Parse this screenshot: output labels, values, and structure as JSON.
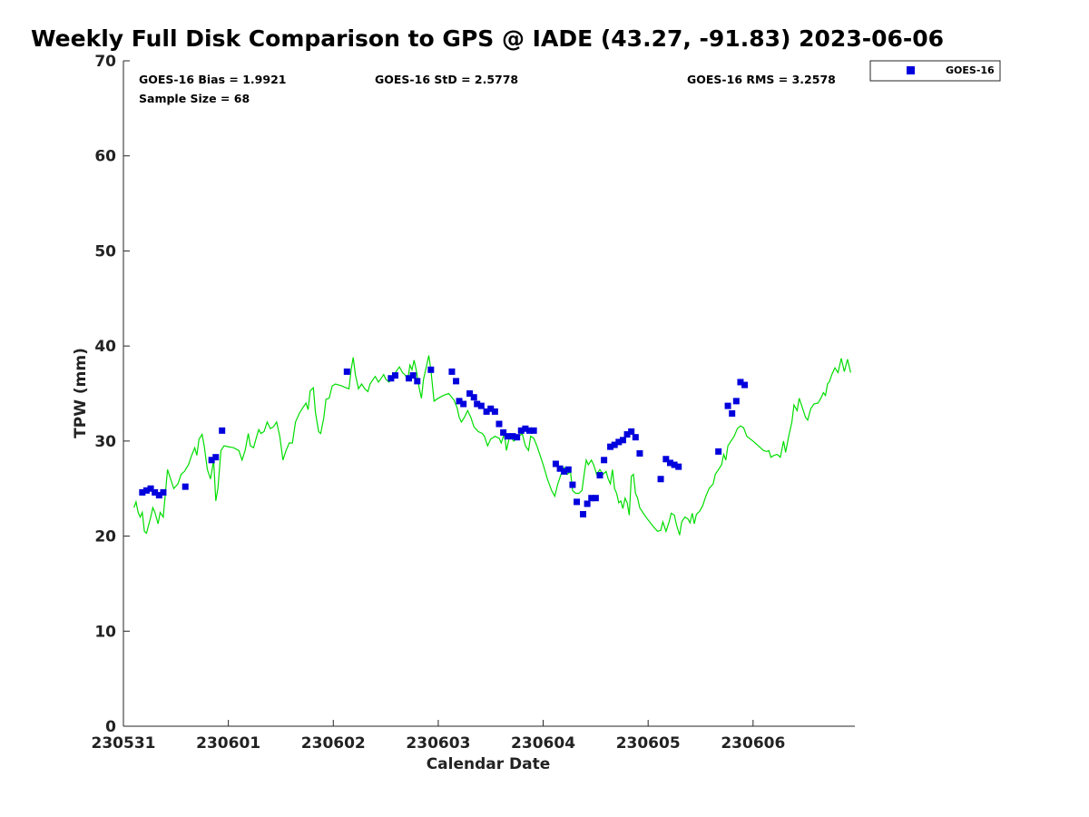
{
  "title": "Weekly Full Disk Comparison to GPS @ IADE (43.27, -91.83) 2023-06-06",
  "stats": {
    "bias": "GOES-16 Bias = 1.9921",
    "std": "GOES-16 StD = 2.5778",
    "rms": "GOES-16 RMS = 3.2578",
    "sample": "Sample Size = 68"
  },
  "legend": {
    "label": "GOES-16"
  },
  "colors": {
    "goes": "#0000dd",
    "gps": "#00dd00"
  },
  "chart_data": {
    "type": "scatter",
    "title": "Weekly Full Disk Comparison to GPS @ IADE (43.27, -91.83) 2023-06-06",
    "xlabel": "Calendar Date",
    "ylabel": "TPW (mm)",
    "xlim": [
      0,
      6.97
    ],
    "ylim": [
      0,
      70
    ],
    "xticks": [
      0,
      1,
      2,
      3,
      4,
      5,
      6
    ],
    "xtick_labels": [
      "230531",
      "230601",
      "230602",
      "230603",
      "230604",
      "230605",
      "230606"
    ],
    "yticks": [
      0,
      10,
      20,
      30,
      40,
      50,
      60,
      70
    ],
    "ytick_labels": [
      "0",
      "10",
      "20",
      "30",
      "40",
      "50",
      "60",
      "70"
    ],
    "series": [
      {
        "name": "GOES-16",
        "kind": "scatter",
        "points": [
          [
            0.18,
            24.6
          ],
          [
            0.22,
            24.8
          ],
          [
            0.26,
            25.0
          ],
          [
            0.3,
            24.6
          ],
          [
            0.34,
            24.3
          ],
          [
            0.38,
            24.6
          ],
          [
            0.59,
            25.2
          ],
          [
            0.84,
            28.0
          ],
          [
            0.88,
            28.3
          ],
          [
            0.94,
            31.1
          ],
          [
            2.13,
            37.3
          ],
          [
            2.55,
            36.6
          ],
          [
            2.59,
            36.9
          ],
          [
            2.72,
            36.6
          ],
          [
            2.76,
            36.9
          ],
          [
            2.8,
            36.3
          ],
          [
            2.93,
            37.5
          ],
          [
            3.13,
            37.3
          ],
          [
            3.17,
            36.3
          ],
          [
            3.2,
            34.2
          ],
          [
            3.24,
            33.9
          ],
          [
            3.3,
            35.0
          ],
          [
            3.34,
            34.6
          ],
          [
            3.37,
            33.9
          ],
          [
            3.41,
            33.7
          ],
          [
            3.46,
            33.1
          ],
          [
            3.5,
            33.4
          ],
          [
            3.54,
            33.1
          ],
          [
            3.58,
            31.8
          ],
          [
            3.62,
            30.9
          ],
          [
            3.66,
            30.5
          ],
          [
            3.71,
            30.5
          ],
          [
            3.75,
            30.4
          ],
          [
            3.79,
            31.1
          ],
          [
            3.83,
            31.3
          ],
          [
            3.87,
            31.1
          ],
          [
            3.91,
            31.1
          ],
          [
            4.12,
            27.6
          ],
          [
            4.16,
            27.1
          ],
          [
            4.2,
            26.8
          ],
          [
            4.24,
            27.0
          ],
          [
            4.28,
            25.4
          ],
          [
            4.32,
            23.6
          ],
          [
            4.38,
            22.3
          ],
          [
            4.42,
            23.4
          ],
          [
            4.46,
            24.0
          ],
          [
            4.5,
            24.0
          ],
          [
            4.54,
            26.4
          ],
          [
            4.58,
            28.0
          ],
          [
            4.64,
            29.4
          ],
          [
            4.68,
            29.6
          ],
          [
            4.72,
            29.9
          ],
          [
            4.76,
            30.1
          ],
          [
            4.8,
            30.7
          ],
          [
            4.84,
            31.0
          ],
          [
            4.88,
            30.4
          ],
          [
            4.92,
            28.7
          ],
          [
            5.12,
            26.0
          ],
          [
            5.17,
            28.1
          ],
          [
            5.21,
            27.7
          ],
          [
            5.25,
            27.5
          ],
          [
            5.29,
            27.3
          ],
          [
            5.67,
            28.9
          ],
          [
            5.76,
            33.7
          ],
          [
            5.8,
            32.9
          ],
          [
            5.84,
            34.2
          ],
          [
            5.88,
            36.2
          ],
          [
            5.92,
            35.9
          ]
        ]
      },
      {
        "name": "GPS",
        "kind": "line",
        "points": [
          [
            0.1,
            23.0
          ],
          [
            0.12,
            23.6
          ],
          [
            0.14,
            22.5
          ],
          [
            0.16,
            22.0
          ],
          [
            0.18,
            22.5
          ],
          [
            0.2,
            20.5
          ],
          [
            0.22,
            20.3
          ],
          [
            0.26,
            22.0
          ],
          [
            0.28,
            23.0
          ],
          [
            0.3,
            22.5
          ],
          [
            0.33,
            21.3
          ],
          [
            0.35,
            22.5
          ],
          [
            0.38,
            22.0
          ],
          [
            0.42,
            27.0
          ],
          [
            0.45,
            26.0
          ],
          [
            0.48,
            25.0
          ],
          [
            0.52,
            25.5
          ],
          [
            0.55,
            26.5
          ],
          [
            0.58,
            26.8
          ],
          [
            0.62,
            27.5
          ],
          [
            0.65,
            28.5
          ],
          [
            0.68,
            29.3
          ],
          [
            0.7,
            28.5
          ],
          [
            0.72,
            30.2
          ],
          [
            0.75,
            30.7
          ],
          [
            0.77,
            29.5
          ],
          [
            0.8,
            27.0
          ],
          [
            0.83,
            26.0
          ],
          [
            0.86,
            28.0
          ],
          [
            0.88,
            23.7
          ],
          [
            0.9,
            25.0
          ],
          [
            0.93,
            29.0
          ],
          [
            0.96,
            29.5
          ],
          [
            1.0,
            29.4
          ],
          [
            1.05,
            29.3
          ],
          [
            1.1,
            29.0
          ],
          [
            1.13,
            28.0
          ],
          [
            1.16,
            29.0
          ],
          [
            1.19,
            30.8
          ],
          [
            1.21,
            29.5
          ],
          [
            1.24,
            29.3
          ],
          [
            1.27,
            30.5
          ],
          [
            1.29,
            31.2
          ],
          [
            1.31,
            30.8
          ],
          [
            1.34,
            31.0
          ],
          [
            1.37,
            32.0
          ],
          [
            1.4,
            31.3
          ],
          [
            1.43,
            31.5
          ],
          [
            1.46,
            32.0
          ],
          [
            1.49,
            30.5
          ],
          [
            1.52,
            28.0
          ],
          [
            1.55,
            29.0
          ],
          [
            1.58,
            29.8
          ],
          [
            1.61,
            29.8
          ],
          [
            1.64,
            32.0
          ],
          [
            1.68,
            33.0
          ],
          [
            1.71,
            33.5
          ],
          [
            1.74,
            34.0
          ],
          [
            1.76,
            33.3
          ],
          [
            1.78,
            35.3
          ],
          [
            1.81,
            35.6
          ],
          [
            1.83,
            33.0
          ],
          [
            1.86,
            31.0
          ],
          [
            1.88,
            30.8
          ],
          [
            1.91,
            32.5
          ],
          [
            1.93,
            34.4
          ],
          [
            1.96,
            34.5
          ],
          [
            1.99,
            35.8
          ],
          [
            2.02,
            36.0
          ],
          [
            2.08,
            35.8
          ],
          [
            2.12,
            35.6
          ],
          [
            2.15,
            35.5
          ],
          [
            2.17,
            37.5
          ],
          [
            2.19,
            38.8
          ],
          [
            2.21,
            37.0
          ],
          [
            2.24,
            35.5
          ],
          [
            2.27,
            36.0
          ],
          [
            2.3,
            35.5
          ],
          [
            2.33,
            35.2
          ],
          [
            2.35,
            36.0
          ],
          [
            2.38,
            36.5
          ],
          [
            2.4,
            36.8
          ],
          [
            2.43,
            36.2
          ],
          [
            2.45,
            36.5
          ],
          [
            2.48,
            37.0
          ],
          [
            2.5,
            36.5
          ],
          [
            2.53,
            36.2
          ],
          [
            2.56,
            36.5
          ],
          [
            2.58,
            37.0
          ],
          [
            2.61,
            37.5
          ],
          [
            2.63,
            37.8
          ],
          [
            2.66,
            37.2
          ],
          [
            2.68,
            37.0
          ],
          [
            2.71,
            36.5
          ],
          [
            2.73,
            38.0
          ],
          [
            2.75,
            37.5
          ],
          [
            2.77,
            38.5
          ],
          [
            2.79,
            37.5
          ],
          [
            2.82,
            35.5
          ],
          [
            2.84,
            34.5
          ],
          [
            2.86,
            36.5
          ],
          [
            2.89,
            38.0
          ],
          [
            2.91,
            39.0
          ],
          [
            2.93,
            37.5
          ],
          [
            2.96,
            34.2
          ],
          [
            3.0,
            34.5
          ],
          [
            3.05,
            34.8
          ],
          [
            3.1,
            35.0
          ],
          [
            3.15,
            34.3
          ],
          [
            3.18,
            33.5
          ],
          [
            3.2,
            32.5
          ],
          [
            3.22,
            32.0
          ],
          [
            3.25,
            32.5
          ],
          [
            3.28,
            33.2
          ],
          [
            3.31,
            32.5
          ],
          [
            3.34,
            31.5
          ],
          [
            3.38,
            31.0
          ],
          [
            3.42,
            30.8
          ],
          [
            3.44,
            30.5
          ],
          [
            3.47,
            29.5
          ],
          [
            3.5,
            30.2
          ],
          [
            3.54,
            30.5
          ],
          [
            3.58,
            30.3
          ],
          [
            3.6,
            29.8
          ],
          [
            3.63,
            30.8
          ],
          [
            3.65,
            29.0
          ],
          [
            3.68,
            30.5
          ],
          [
            3.72,
            30.0
          ],
          [
            3.76,
            30.4
          ],
          [
            3.8,
            30.8
          ],
          [
            3.83,
            29.5
          ],
          [
            3.86,
            29.0
          ],
          [
            3.88,
            30.5
          ],
          [
            3.91,
            30.3
          ],
          [
            3.94,
            29.5
          ],
          [
            3.97,
            28.5
          ],
          [
            4.0,
            27.5
          ],
          [
            4.04,
            26.0
          ],
          [
            4.08,
            24.8
          ],
          [
            4.11,
            24.2
          ],
          [
            4.14,
            25.5
          ],
          [
            4.17,
            26.5
          ],
          [
            4.2,
            27.2
          ],
          [
            4.23,
            26.5
          ],
          [
            4.26,
            26.8
          ],
          [
            4.28,
            24.8
          ],
          [
            4.31,
            24.5
          ],
          [
            4.34,
            24.5
          ],
          [
            4.37,
            24.8
          ],
          [
            4.39,
            26.5
          ],
          [
            4.41,
            28.0
          ],
          [
            4.43,
            27.5
          ],
          [
            4.46,
            28.0
          ],
          [
            4.48,
            27.5
          ],
          [
            4.51,
            26.5
          ],
          [
            4.54,
            27.0
          ],
          [
            4.57,
            26.5
          ],
          [
            4.6,
            26.8
          ],
          [
            4.62,
            26.0
          ],
          [
            4.64,
            25.5
          ],
          [
            4.66,
            27.0
          ],
          [
            4.68,
            25.0
          ],
          [
            4.7,
            24.5
          ],
          [
            4.72,
            23.5
          ],
          [
            4.74,
            23.7
          ],
          [
            4.76,
            22.9
          ],
          [
            4.78,
            24.0
          ],
          [
            4.8,
            23.5
          ],
          [
            4.82,
            22.2
          ],
          [
            4.84,
            26.3
          ],
          [
            4.86,
            26.5
          ],
          [
            4.88,
            24.5
          ],
          [
            4.9,
            24.0
          ],
          [
            4.92,
            23.0
          ],
          [
            4.96,
            22.3
          ],
          [
            5.0,
            21.7
          ],
          [
            5.05,
            21.0
          ],
          [
            5.09,
            20.5
          ],
          [
            5.12,
            20.6
          ],
          [
            5.14,
            21.5
          ],
          [
            5.17,
            20.5
          ],
          [
            5.2,
            21.5
          ],
          [
            5.22,
            22.4
          ],
          [
            5.25,
            22.2
          ],
          [
            5.27,
            21.2
          ],
          [
            5.3,
            20.1
          ],
          [
            5.32,
            21.5
          ],
          [
            5.35,
            22.0
          ],
          [
            5.38,
            21.8
          ],
          [
            5.4,
            21.4
          ],
          [
            5.42,
            22.4
          ],
          [
            5.44,
            21.3
          ],
          [
            5.46,
            22.3
          ],
          [
            5.49,
            22.6
          ],
          [
            5.52,
            23.2
          ],
          [
            5.55,
            24.2
          ],
          [
            5.58,
            25.0
          ],
          [
            5.62,
            25.5
          ],
          [
            5.64,
            26.5
          ],
          [
            5.67,
            27.0
          ],
          [
            5.7,
            27.5
          ],
          [
            5.72,
            28.6
          ],
          [
            5.74,
            28.0
          ],
          [
            5.76,
            29.5
          ],
          [
            5.79,
            30.0
          ],
          [
            5.82,
            30.5
          ],
          [
            5.85,
            31.3
          ],
          [
            5.88,
            31.6
          ],
          [
            5.91,
            31.4
          ],
          [
            5.94,
            30.5
          ],
          [
            6.0,
            30.0
          ],
          [
            6.05,
            29.5
          ],
          [
            6.1,
            29.0
          ],
          [
            6.13,
            28.9
          ],
          [
            6.15,
            29.0
          ],
          [
            6.17,
            28.3
          ],
          [
            6.2,
            28.5
          ],
          [
            6.23,
            28.6
          ],
          [
            6.26,
            28.3
          ],
          [
            6.29,
            30.0
          ],
          [
            6.31,
            28.8
          ],
          [
            6.34,
            30.5
          ],
          [
            6.37,
            32.0
          ],
          [
            6.39,
            33.8
          ],
          [
            6.42,
            33.2
          ],
          [
            6.44,
            34.5
          ],
          [
            6.47,
            33.5
          ],
          [
            6.5,
            32.5
          ],
          [
            6.52,
            32.2
          ],
          [
            6.55,
            33.4
          ],
          [
            6.58,
            33.9
          ],
          [
            6.62,
            34.0
          ],
          [
            6.65,
            34.6
          ],
          [
            6.67,
            35.1
          ],
          [
            6.69,
            34.8
          ],
          [
            6.71,
            36.0
          ],
          [
            6.73,
            36.3
          ],
          [
            6.75,
            37.0
          ],
          [
            6.78,
            37.7
          ],
          [
            6.81,
            37.2
          ],
          [
            6.84,
            38.7
          ],
          [
            6.87,
            37.3
          ],
          [
            6.9,
            38.6
          ],
          [
            6.93,
            37.2
          ]
        ]
      }
    ]
  }
}
